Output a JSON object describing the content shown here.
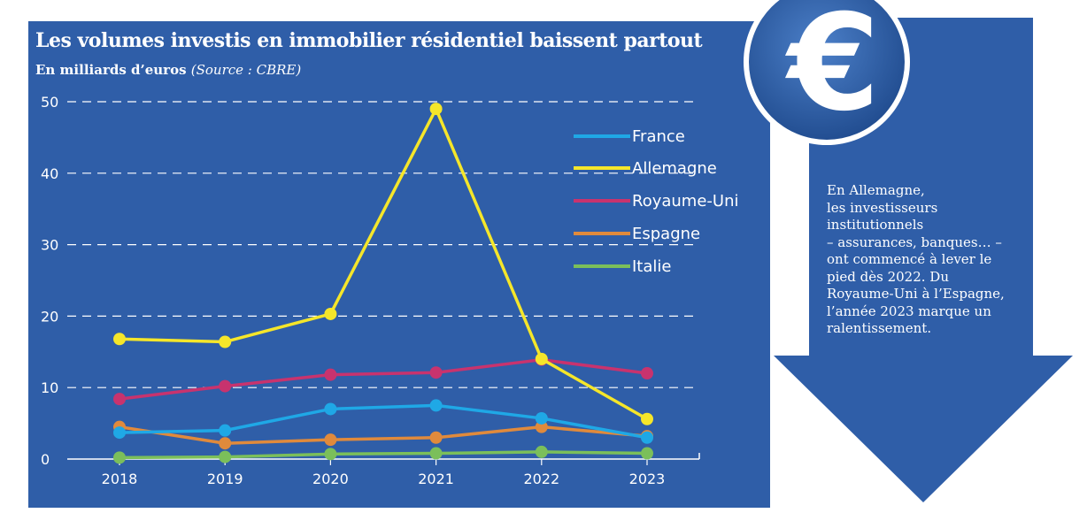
{
  "header": {
    "title": "Les volumes investis en immobilier résidentiel baissent partout",
    "subtitle": "En milliards d’euros",
    "source": "(Source : CBRE)"
  },
  "sidebar": {
    "lines": [
      "En Allemagne,",
      "les investisseurs",
      "institutionnels",
      "– assurances, banques… –",
      "ont commencé à lever le",
      "pied dès 2022. Du",
      "Royaume-Uni à l’Espagne,",
      "l’année 2023 marque un",
      "ralentissement."
    ]
  },
  "decoration": {
    "icon": "euro-coin-icon",
    "symbol": "€"
  },
  "colors": {
    "panel": "#2f5ea8",
    "arrow": "#2f5ea8",
    "coin": "#2a5aa4"
  },
  "chart_data": {
    "type": "line",
    "title": "Les volumes investis en immobilier résidentiel baissent partout",
    "subtitle": "En milliards d’euros",
    "source": "(Source : CBRE)",
    "x": [
      "2018",
      "2019",
      "2020",
      "2021",
      "2022",
      "2023"
    ],
    "ylim": [
      0,
      50
    ],
    "yticks": [
      0,
      10,
      20,
      30,
      40,
      50
    ],
    "grid": "dashed horizontal",
    "legend": "top-right",
    "series": [
      {
        "name": "France",
        "color": "#1fa8e6",
        "values": [
          3.7,
          4,
          7,
          7.5,
          5.7,
          3
        ]
      },
      {
        "name": "Allemagne",
        "color": "#f5e62a",
        "values": [
          16.8,
          16.4,
          20.3,
          49,
          14,
          5.6
        ]
      },
      {
        "name": "Royaume-Uni",
        "color": "#c8336e",
        "values": [
          8.4,
          10.2,
          11.8,
          12.1,
          13.9,
          12
        ]
      },
      {
        "name": "Espagne",
        "color": "#e08a3c",
        "values": [
          4.5,
          2.2,
          2.7,
          3,
          4.5,
          3.2
        ]
      },
      {
        "name": "Italie",
        "color": "#7bbf5a",
        "values": [
          0.2,
          0.3,
          0.7,
          0.8,
          1,
          0.8
        ]
      }
    ]
  }
}
